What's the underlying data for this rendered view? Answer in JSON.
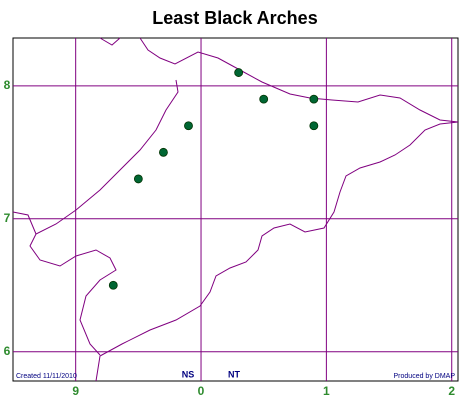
{
  "chart_data": {
    "type": "scatter",
    "title": "Least Black Arches",
    "x": [
      10.3,
      10.5,
      10.9,
      10.9,
      9.9,
      9.7,
      9.5,
      9.3
    ],
    "values": [
      8.1,
      7.9,
      7.9,
      7.7,
      7.7,
      7.5,
      7.3,
      6.5
    ],
    "color": "#006633",
    "xlim": [
      8.5,
      12.05
    ],
    "ylim": [
      5.78,
      8.36
    ],
    "xticks": [
      9,
      {
        "value": 10,
        "label": "0"
      },
      {
        "value": 11,
        "label": "1"
      },
      {
        "value": 12,
        "label": "2"
      }
    ],
    "yticks": [
      6,
      7,
      8
    ],
    "grid": true,
    "grid_color": "#800080",
    "grid_squares": [
      "NS",
      "NT"
    ],
    "created": "Created 11/11/2010",
    "producer": "Produced by DMAP"
  }
}
